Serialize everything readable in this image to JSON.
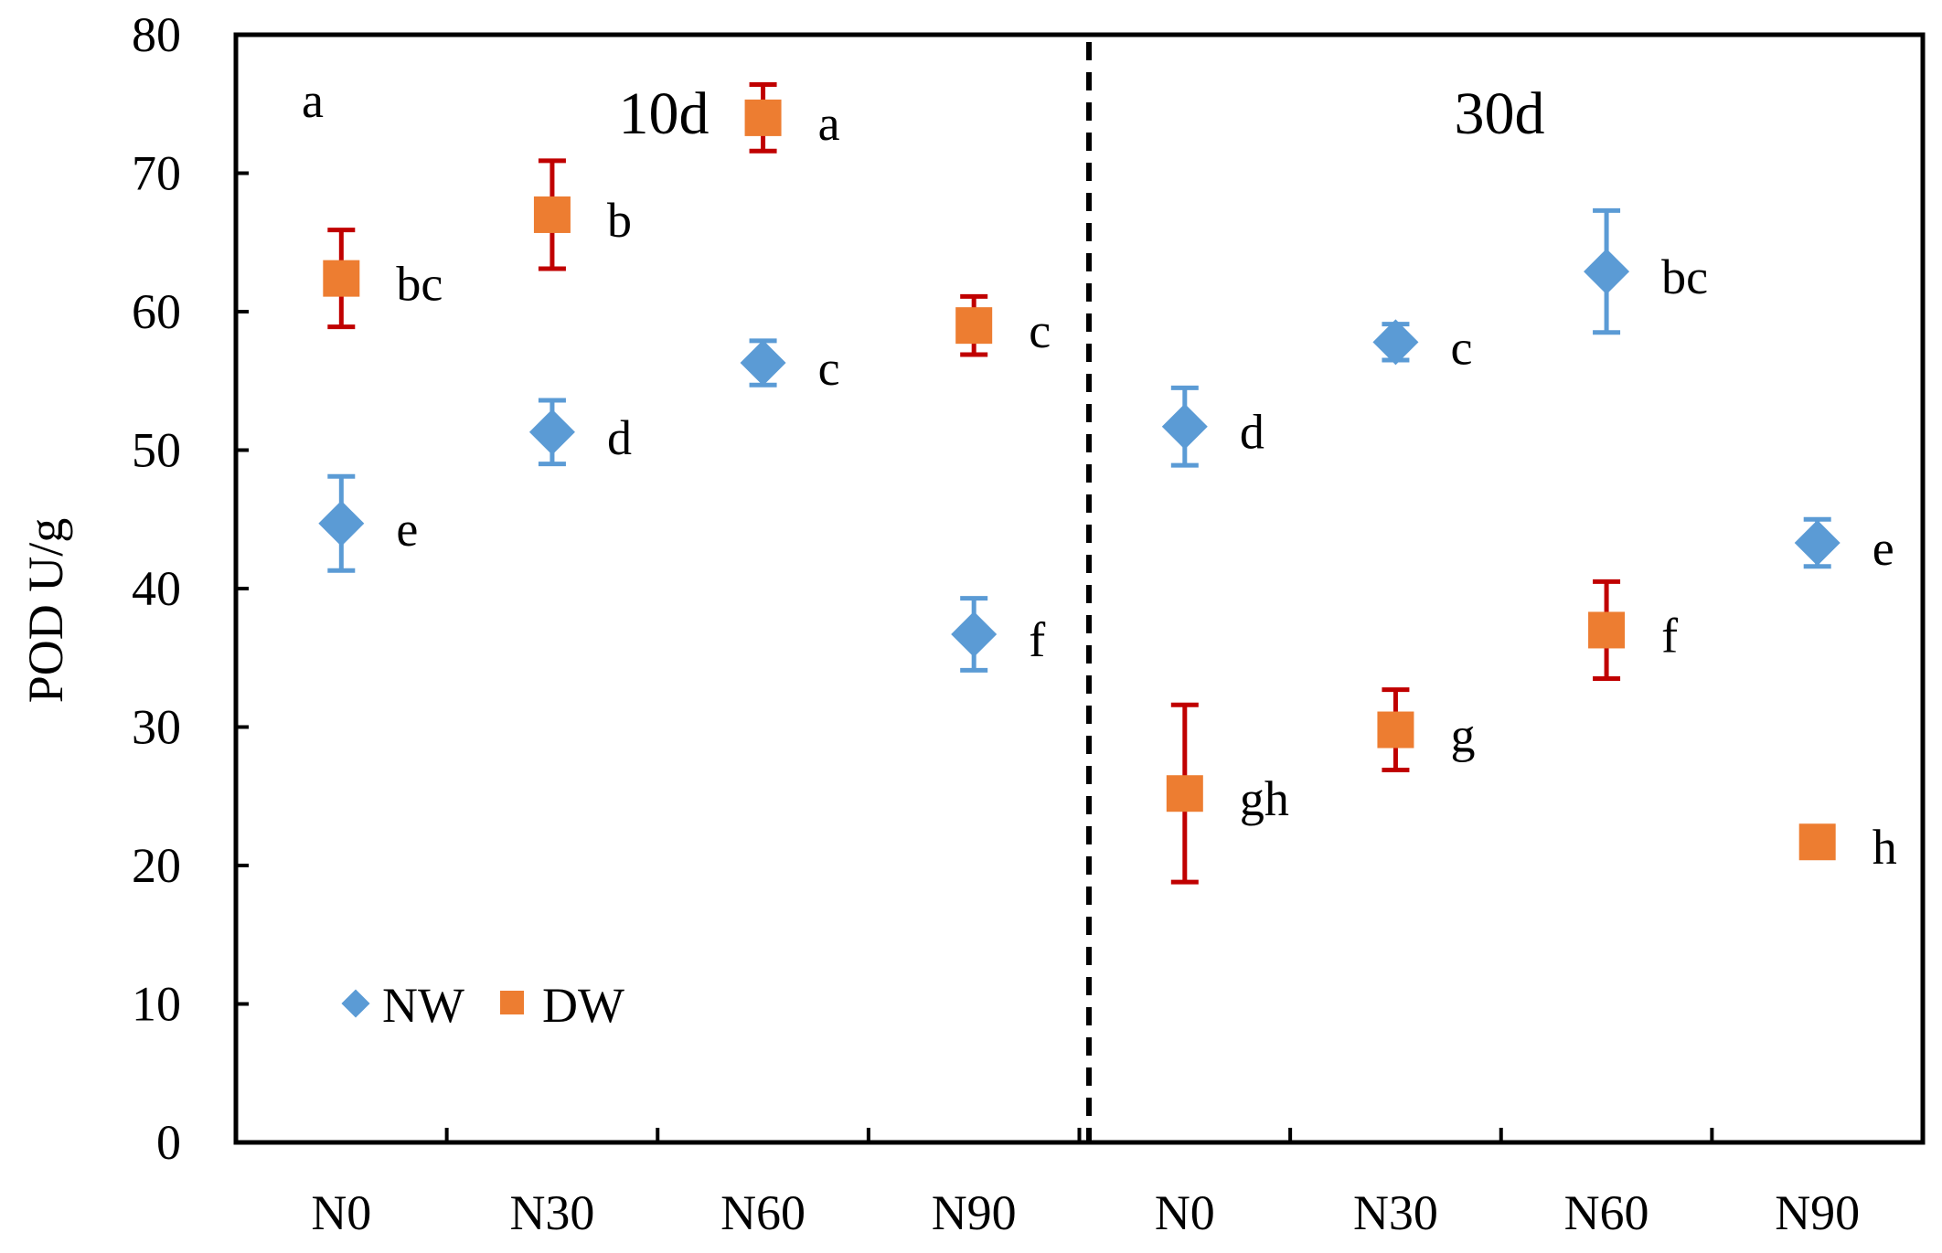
{
  "chart_data": {
    "type": "scatter",
    "title": "",
    "panel_label": "a",
    "xlabel": "",
    "ylabel": "POD U/g",
    "ylim": [
      0,
      80
    ],
    "yticks": [
      0,
      10,
      20,
      30,
      40,
      50,
      60,
      70,
      80
    ],
    "grid": false,
    "legend_position": "bottom-left",
    "categories": [
      "N0",
      "N30",
      "N60",
      "N90",
      "N0",
      "N30",
      "N60",
      "N90"
    ],
    "groups": [
      {
        "label": "10d",
        "category_indices": [
          0,
          1,
          2,
          3
        ]
      },
      {
        "label": "30d",
        "category_indices": [
          4,
          5,
          6,
          7
        ]
      }
    ],
    "series": [
      {
        "name": "NW",
        "marker": "diamond",
        "color": "#5b9bd5",
        "error_color": "#5b9bd5",
        "values": [
          44.7,
          51.3,
          56.3,
          36.7,
          51.7,
          57.8,
          62.9,
          43.3
        ],
        "errors": [
          3.4,
          2.3,
          1.6,
          2.6,
          2.8,
          1.3,
          4.4,
          1.7
        ],
        "labels": [
          "e",
          "d",
          "c",
          "f",
          "d",
          "c",
          "bc",
          "e"
        ]
      },
      {
        "name": "DW",
        "marker": "square",
        "color": "#ed7d31",
        "error_color": "#c00000",
        "values": [
          62.4,
          67.0,
          74.0,
          59.0,
          25.2,
          29.8,
          37.0,
          21.7
        ],
        "errors": [
          3.5,
          3.9,
          2.4,
          2.1,
          6.4,
          2.9,
          3.5,
          0
        ],
        "labels": [
          "bc",
          "b",
          "a",
          "c",
          "gh",
          "g",
          "f",
          "h"
        ]
      }
    ]
  }
}
